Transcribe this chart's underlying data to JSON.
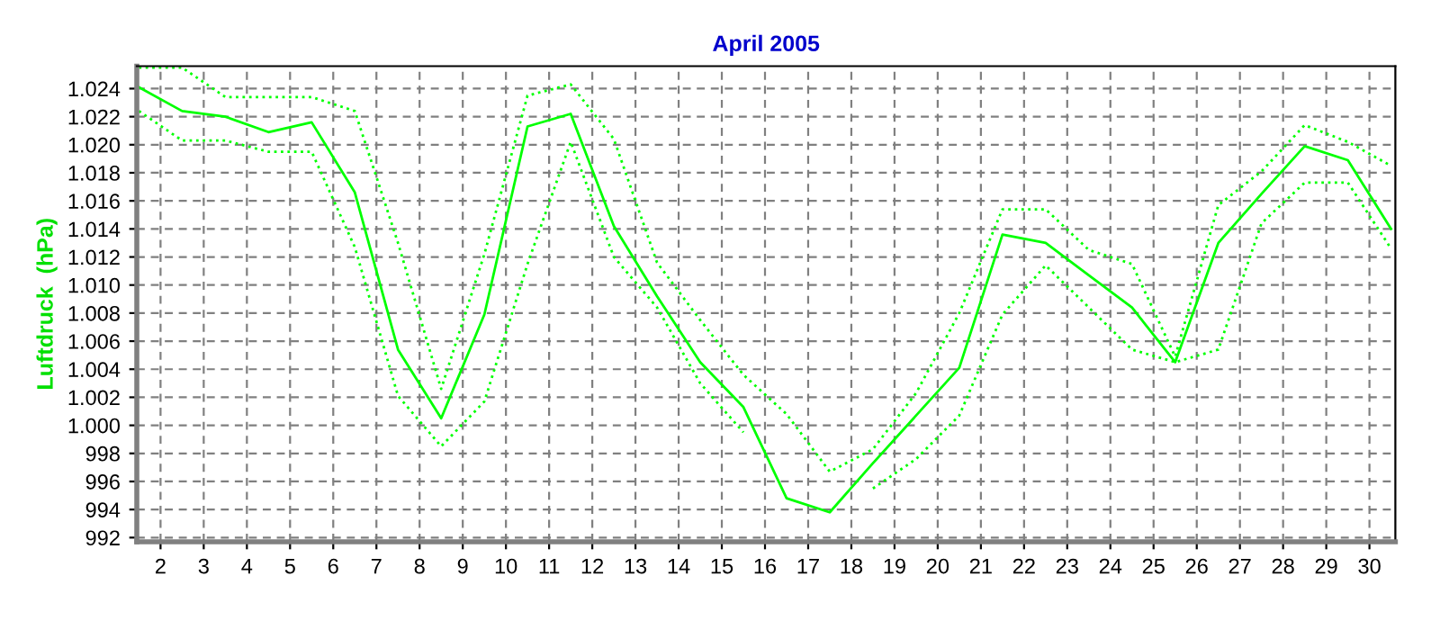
{
  "chart_data": {
    "type": "line",
    "title": "April 2005",
    "ylabel": "Luftdruck  (hPa)",
    "x": [
      1.5,
      2.5,
      3.5,
      4.5,
      5.5,
      6.5,
      7.5,
      8.5,
      9.5,
      10.5,
      11.5,
      12.5,
      13.5,
      14.5,
      15.5,
      16.5,
      17.5,
      18.5,
      19.5,
      20.5,
      21.5,
      22.5,
      23.5,
      24.5,
      25.5,
      26.5,
      27.5,
      28.5,
      29.5,
      30.5
    ],
    "series": [
      {
        "color": "#00ff00",
        "line_style": "dotted",
        "values": [
          1025.5,
          1025.5,
          1023.4,
          1023.4,
          1023.4,
          1022.4,
          1013,
          1002.6,
          1012.2,
          1023.5,
          1024.3,
          1020.4,
          1011.6,
          1007.5,
          1003.6,
          1000.8,
          996.7,
          998.3,
          1002.3,
          1008,
          1015.4,
          1015.4,
          1012.5,
          1011.5,
          1004.9,
          1015.7,
          1018.1,
          1021.4,
          1020.2,
          1018.5
        ]
      },
      {
        "color": "#00ff00",
        "line_style": "solid",
        "values": [
          1024.1,
          1022.4,
          1022,
          1020.9,
          1021.6,
          1016.6,
          1005.4,
          1000.5,
          1007.9,
          1021.3,
          1022.2,
          1014.2,
          1009.2,
          1004.5,
          1001.3,
          994.8,
          993.8,
          997.3,
          1000.7,
          1004.1,
          1013.6,
          1013,
          1010.7,
          1008.4,
          1004.5,
          1013,
          1016.5,
          1019.9,
          1018.9,
          1014
        ]
      },
      {
        "color": "#00ff00",
        "line_style": "dotted",
        "values": [
          1022.4,
          1020.3,
          1020.3,
          1019.5,
          1019.5,
          1012.7,
          1002.1,
          998.5,
          1001.7,
          1011.5,
          1020.2,
          1012,
          1008.4,
          1003,
          999.5,
          null,
          null,
          995.5,
          997.6,
          1000.7,
          1007.9,
          1011.4,
          1008.4,
          1005.4,
          1004.5,
          1005.4,
          1014.4,
          1017.3,
          1017.3,
          1012.6
        ]
      }
    ],
    "xlim": [
      1.45,
      30.6
    ],
    "xticks": [
      2,
      3,
      4,
      5,
      6,
      7,
      8,
      9,
      10,
      11,
      12,
      13,
      14,
      15,
      16,
      17,
      18,
      19,
      20,
      21,
      22,
      23,
      24,
      25,
      26,
      27,
      28,
      29,
      30
    ],
    "ylim": [
      991.7,
      1025.6
    ],
    "yticks": [
      {
        "value": 992,
        "label": "992"
      },
      {
        "value": 994,
        "label": "994"
      },
      {
        "value": 996,
        "label": "996"
      },
      {
        "value": 998,
        "label": "998"
      },
      {
        "value": 1000,
        "label": "1.000"
      },
      {
        "value": 1002,
        "label": "1.002"
      },
      {
        "value": 1004,
        "label": "1.004"
      },
      {
        "value": 1006,
        "label": "1.006"
      },
      {
        "value": 1008,
        "label": "1.008"
      },
      {
        "value": 1010,
        "label": "1.010"
      },
      {
        "value": 1012,
        "label": "1.012"
      },
      {
        "value": 1014,
        "label": "1.014"
      },
      {
        "value": 1016,
        "label": "1.016"
      },
      {
        "value": 1018,
        "label": "1.018"
      },
      {
        "value": 1020,
        "label": "1.020"
      },
      {
        "value": 1022,
        "label": "1.022"
      },
      {
        "value": 1024,
        "label": "1.024"
      }
    ],
    "grid": true,
    "marker": "none"
  }
}
